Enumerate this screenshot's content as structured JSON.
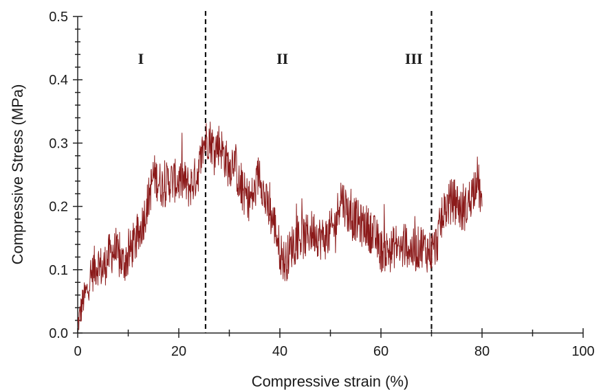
{
  "chart_data": {
    "type": "line",
    "xlabel": "Compressive strain (%)",
    "ylabel": "Compressive Stress (MPa)",
    "xlim": [
      0,
      100
    ],
    "ylim": [
      0,
      0.5
    ],
    "x_ticks": [
      0,
      20,
      40,
      60,
      80,
      100
    ],
    "x_tick_labels": [
      "0",
      "20",
      "40",
      "60",
      "80",
      "100"
    ],
    "y_ticks": [
      0.0,
      0.1,
      0.2,
      0.3,
      0.4,
      0.5
    ],
    "y_tick_labels": [
      "0.0",
      "0.1",
      "0.2",
      "0.3",
      "0.4",
      "0.5"
    ],
    "grid": false,
    "colors": {
      "series": "#8b1a1a",
      "axes": "#222222"
    },
    "regions": [
      {
        "label": "I",
        "x_center": 12.5
      },
      {
        "label": "II",
        "x_center": 40.5
      },
      {
        "label": "III",
        "x_center": 66.5
      }
    ],
    "dividers": [
      25.3,
      70.0
    ],
    "series": [
      {
        "x": [
          0,
          1,
          2,
          3,
          4,
          5,
          6,
          7,
          8,
          9,
          10,
          11,
          12,
          13,
          14,
          15,
          16,
          17,
          18,
          19,
          20,
          21,
          22,
          23,
          24,
          25,
          26,
          27,
          28,
          29,
          30,
          31,
          32,
          33,
          34,
          35,
          36,
          37,
          38,
          39,
          40,
          41,
          42,
          43,
          44,
          45,
          46,
          47,
          48,
          49,
          50,
          51,
          52,
          53,
          54,
          55,
          56,
          57,
          58,
          59,
          60,
          61,
          62,
          63,
          64,
          65,
          66,
          67,
          68,
          69,
          70,
          71,
          72,
          73,
          74,
          75,
          76,
          77,
          78,
          79,
          80
        ],
        "y": [
          0.01,
          0.05,
          0.07,
          0.1,
          0.11,
          0.1,
          0.12,
          0.13,
          0.12,
          0.11,
          0.12,
          0.14,
          0.15,
          0.18,
          0.21,
          0.25,
          0.24,
          0.23,
          0.24,
          0.24,
          0.24,
          0.24,
          0.23,
          0.24,
          0.26,
          0.3,
          0.31,
          0.29,
          0.3,
          0.28,
          0.26,
          0.28,
          0.23,
          0.22,
          0.21,
          0.22,
          0.26,
          0.21,
          0.19,
          0.17,
          0.13,
          0.11,
          0.13,
          0.15,
          0.15,
          0.15,
          0.16,
          0.16,
          0.15,
          0.15,
          0.16,
          0.17,
          0.22,
          0.2,
          0.18,
          0.18,
          0.17,
          0.17,
          0.16,
          0.15,
          0.13,
          0.13,
          0.13,
          0.14,
          0.13,
          0.14,
          0.13,
          0.13,
          0.14,
          0.13,
          0.13,
          0.14,
          0.18,
          0.2,
          0.21,
          0.21,
          0.19,
          0.2,
          0.22,
          0.25,
          0.2
        ]
      }
    ]
  }
}
